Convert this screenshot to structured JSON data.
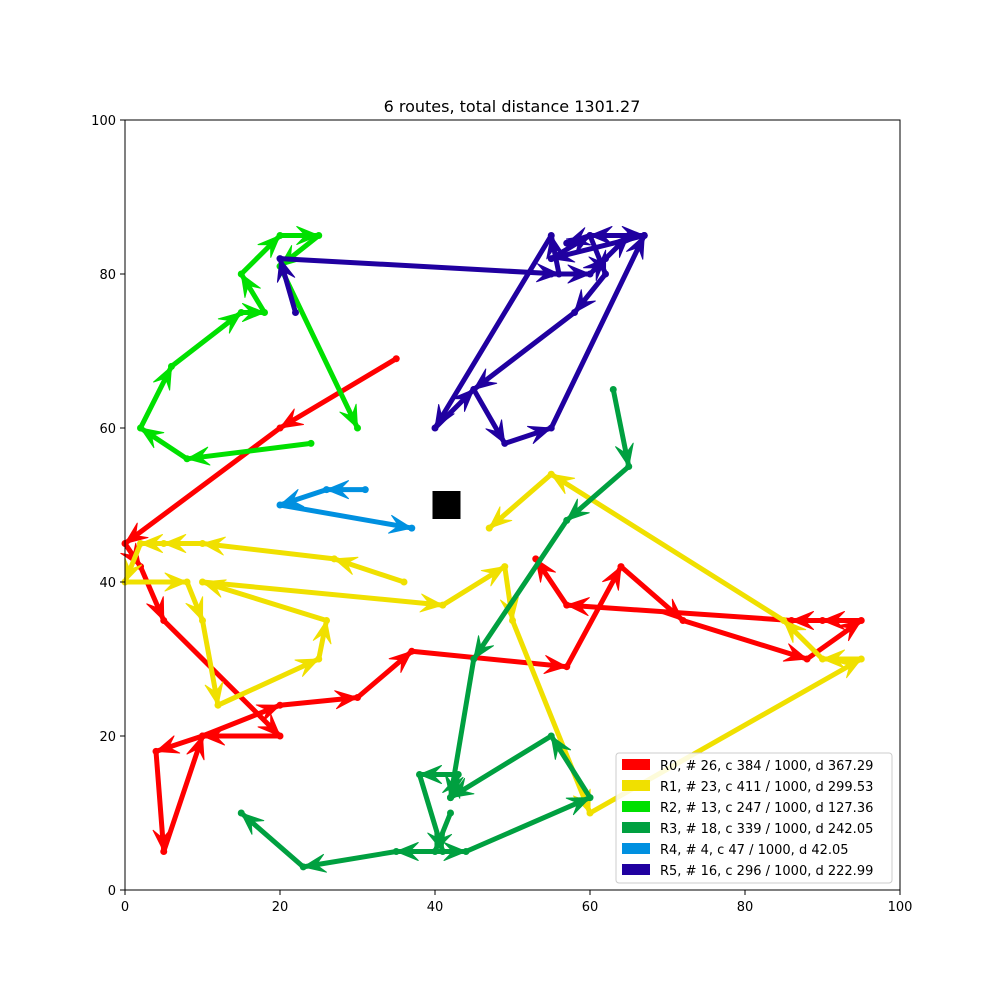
{
  "chart_data": {
    "type": "line",
    "title": "6 routes, total distance 1301.27",
    "xlabel": "",
    "ylabel": "",
    "xlim": [
      0,
      100
    ],
    "ylim": [
      0,
      100
    ],
    "xticks": [
      "0",
      "20",
      "40",
      "60",
      "80",
      "100"
    ],
    "yticks": [
      "0",
      "20",
      "40",
      "60",
      "80",
      "100"
    ],
    "grid": false,
    "legend_position": "lower-right",
    "depot": {
      "x": 40,
      "y": 50,
      "color": "#000000"
    },
    "series": [
      {
        "name": "R0, # 26, c 384 / 1000, d 367.29",
        "color": "#ff0000",
        "points": [
          [
            35,
            69
          ],
          [
            20,
            60
          ],
          [
            0,
            45
          ],
          [
            2,
            42
          ],
          [
            5,
            35
          ],
          [
            20,
            20
          ],
          [
            10,
            20
          ],
          [
            4,
            18
          ],
          [
            5,
            5
          ],
          [
            10,
            20
          ],
          [
            20,
            24
          ],
          [
            30,
            25
          ],
          [
            37,
            31
          ],
          [
            57,
            29
          ],
          [
            64,
            42
          ],
          [
            72,
            35
          ],
          [
            88,
            30
          ],
          [
            95,
            35
          ],
          [
            90,
            35
          ],
          [
            86,
            35
          ],
          [
            57,
            37
          ],
          [
            53,
            43
          ]
        ]
      },
      {
        "name": "R1, # 23, c 411 / 1000, d 299.53",
        "color": "#f0e000",
        "points": [
          [
            36,
            40
          ],
          [
            27,
            43
          ],
          [
            10,
            45
          ],
          [
            5,
            45
          ],
          [
            2,
            45
          ],
          [
            0,
            40
          ],
          [
            8,
            40
          ],
          [
            10,
            35
          ],
          [
            12,
            24
          ],
          [
            25,
            30
          ],
          [
            26,
            35
          ],
          [
            10,
            40
          ],
          [
            41,
            37
          ],
          [
            49,
            42
          ],
          [
            50,
            35
          ],
          [
            60,
            10
          ],
          [
            95,
            30
          ],
          [
            90,
            30
          ],
          [
            85,
            35
          ],
          [
            55,
            54
          ],
          [
            47,
            47
          ]
        ]
      },
      {
        "name": "R2, # 13, c 247 / 1000, d 127.36",
        "color": "#00e000",
        "points": [
          [
            24,
            58
          ],
          [
            8,
            56
          ],
          [
            2,
            60
          ],
          [
            6,
            68
          ],
          [
            15,
            75
          ],
          [
            18,
            75
          ],
          [
            15,
            80
          ],
          [
            20,
            85
          ],
          [
            25,
            85
          ],
          [
            20,
            81
          ],
          [
            30,
            60
          ]
        ]
      },
      {
        "name": "R3, # 18, c 339 / 1000, d 242.05",
        "color": "#00a040",
        "points": [
          [
            63,
            65
          ],
          [
            65,
            55
          ],
          [
            57,
            48
          ],
          [
            45,
            30
          ],
          [
            42,
            12
          ],
          [
            43,
            15
          ],
          [
            38,
            15
          ],
          [
            41,
            5
          ],
          [
            35,
            5
          ],
          [
            23,
            3
          ],
          [
            15,
            10
          ]
        ]
      },
      {
        "name": "R3, # 18, c 339 / 1000, d 242.05",
        "color": "#00a040",
        "points": [
          [
            42,
            10
          ],
          [
            40,
            5
          ],
          [
            44,
            5
          ],
          [
            60,
            12
          ],
          [
            55,
            20
          ],
          [
            42,
            12
          ]
        ]
      },
      {
        "name": "R4, # 4, c 47 / 1000, d 42.05",
        "color": "#0090e0",
        "points": [
          [
            31,
            52
          ],
          [
            26,
            52
          ],
          [
            20,
            50
          ],
          [
            37,
            47
          ]
        ]
      },
      {
        "name": "R5, # 16, c 296 / 1000, d 222.99",
        "color": "#2000a0",
        "points": [
          [
            22,
            75
          ],
          [
            20,
            82
          ],
          [
            56,
            80
          ],
          [
            55,
            85
          ],
          [
            40,
            60
          ],
          [
            45,
            65
          ],
          [
            49,
            58
          ],
          [
            55,
            60
          ],
          [
            67,
            85
          ],
          [
            55,
            82
          ],
          [
            60,
            85
          ],
          [
            62,
            80
          ],
          [
            58,
            75
          ],
          [
            45,
            65
          ]
        ]
      },
      {
        "name": "R5, # 16, c 296 / 1000, d 222.99",
        "color": "#2000a0",
        "points": [
          [
            55,
            80
          ],
          [
            60,
            80
          ],
          [
            62,
            82
          ],
          [
            65,
            85
          ],
          [
            67,
            85
          ],
          [
            60,
            85
          ],
          [
            57,
            84
          ]
        ]
      }
    ],
    "legend": [
      {
        "label": "R0, # 26, c 384 / 1000, d 367.29",
        "color": "#ff0000"
      },
      {
        "label": "R1, # 23, c 411 / 1000, d 299.53",
        "color": "#f0e000"
      },
      {
        "label": "R2, # 13, c 247 / 1000, d 127.36",
        "color": "#00e000"
      },
      {
        "label": "R3, # 18, c 339 / 1000, d 242.05",
        "color": "#00a040"
      },
      {
        "label": "R4, # 4, c 47 / 1000, d 42.05",
        "color": "#0090e0"
      },
      {
        "label": "R5, # 16, c 296 / 1000, d 222.99",
        "color": "#2000a0"
      }
    ]
  }
}
